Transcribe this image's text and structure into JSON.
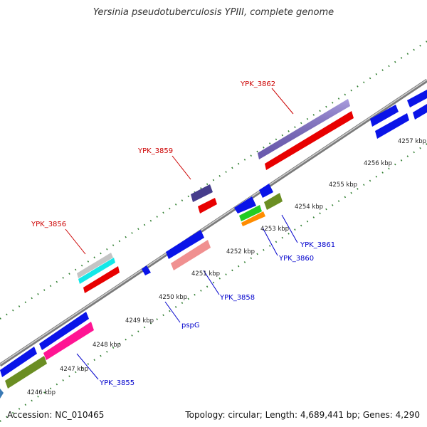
{
  "title": "Yersinia pseudotuberculosis YPIII, complete genome",
  "accession_label": "Accession: NC_010465",
  "summary_label": "Topology: circular; Length: 4,689,441 bp; Genes: 4,290",
  "colors": {
    "backbone": "#a8a8a8",
    "ticks": "#2e7d2e",
    "label_red": "#cc0000",
    "label_blue": "#0000cc"
  },
  "ticks": [
    {
      "label": "4246 kbp"
    },
    {
      "label": "4247 kbp"
    },
    {
      "label": "4248 kbp"
    },
    {
      "label": "4249 kbp"
    },
    {
      "label": "4250 kbp"
    },
    {
      "label": "4251 kbp"
    },
    {
      "label": "4252 kbp"
    },
    {
      "label": "4253 kbp"
    },
    {
      "label": "4254 kbp"
    },
    {
      "label": "4255 kbp"
    },
    {
      "label": "4256 kbp"
    },
    {
      "label": "4257 kbp"
    }
  ],
  "gene_labels": [
    {
      "text": "YPK_3862",
      "color": "red"
    },
    {
      "text": "YPK_3859",
      "color": "red"
    },
    {
      "text": "YPK_3856",
      "color": "red"
    },
    {
      "text": "YPK_3861",
      "color": "blue"
    },
    {
      "text": "YPK_3860",
      "color": "blue"
    },
    {
      "text": "YPK_3858",
      "color": "blue"
    },
    {
      "text": "pspG",
      "color": "blue"
    },
    {
      "text": "YPK_3855",
      "color": "blue"
    }
  ]
}
